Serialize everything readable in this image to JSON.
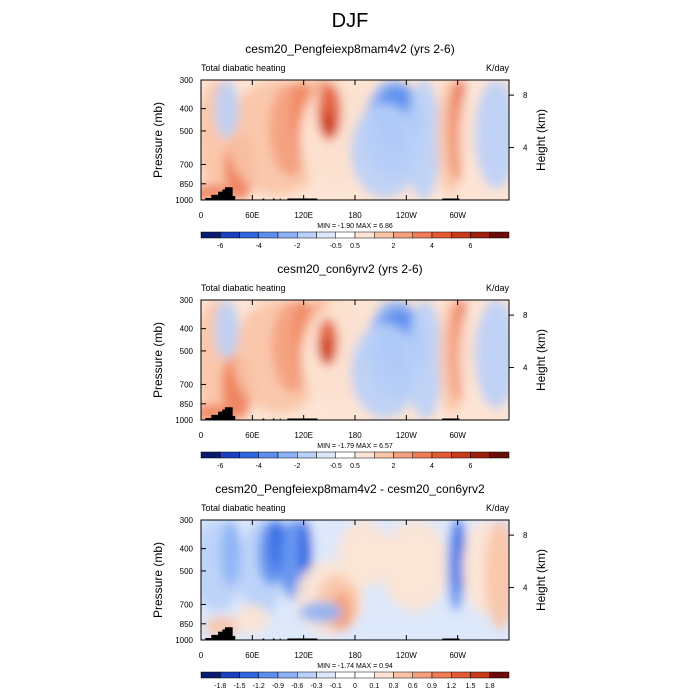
{
  "title": "DJF",
  "chart_data": [
    {
      "type": "heatmap",
      "title": "cesm20_Pengfeiexp8mam4v2 (yrs 2-6)",
      "left_label": "Total diabatic heating",
      "right_label": "K/day",
      "ylabel": "Pressure (mb)",
      "ylabel_right": "Height (km)",
      "yticks": [
        "300",
        "400",
        "500",
        "700",
        "850",
        "1000"
      ],
      "yticks_right": [
        "8",
        "4"
      ],
      "xticks": [
        "0",
        "60E",
        "120E",
        "180",
        "120W",
        "60W"
      ],
      "stats": "MIN = -1.90  MAX =  6.86",
      "colorbar_labels": [
        "-6",
        "-4",
        "-2",
        "-0.5",
        "0.5",
        "2",
        "4",
        "6"
      ],
      "colorbar_colors": [
        "#0a1a6e",
        "#1b3fbf",
        "#2f66e0",
        "#5c8ef0",
        "#8cb1f5",
        "#b9d0f8",
        "#dde8fb",
        "#ffffff",
        "#fde4d4",
        "#f9c4a7",
        "#f4a07c",
        "#ee7c56",
        "#e25a33",
        "#c73a1a",
        "#9c1f0e",
        "#6b0c06"
      ]
    },
    {
      "type": "heatmap",
      "title": "cesm20_con6yrv2 (yrs 2-6)",
      "left_label": "Total diabatic heating",
      "right_label": "K/day",
      "ylabel": "Pressure (mb)",
      "ylabel_right": "Height (km)",
      "yticks": [
        "300",
        "400",
        "500",
        "700",
        "850",
        "1000"
      ],
      "yticks_right": [
        "8",
        "4"
      ],
      "xticks": [
        "0",
        "60E",
        "120E",
        "180",
        "120W",
        "60W"
      ],
      "stats": "MIN = -1.79  MAX =  6.57",
      "colorbar_labels": [
        "-6",
        "-4",
        "-2",
        "-0.5",
        "0.5",
        "2",
        "4",
        "6"
      ],
      "colorbar_colors": [
        "#0a1a6e",
        "#1b3fbf",
        "#2f66e0",
        "#5c8ef0",
        "#8cb1f5",
        "#b9d0f8",
        "#dde8fb",
        "#ffffff",
        "#fde4d4",
        "#f9c4a7",
        "#f4a07c",
        "#ee7c56",
        "#e25a33",
        "#c73a1a",
        "#9c1f0e",
        "#6b0c06"
      ]
    },
    {
      "type": "heatmap",
      "title": "cesm20_Pengfeiexp8mam4v2 - cesm20_con6yrv2",
      "left_label": "Total diabatic heating",
      "right_label": "K/day",
      "ylabel": "Pressure (mb)",
      "ylabel_right": "Height (km)",
      "yticks": [
        "300",
        "400",
        "500",
        "700",
        "850",
        "1000"
      ],
      "yticks_right": [
        "8",
        "4"
      ],
      "xticks": [
        "0",
        "60E",
        "120E",
        "180",
        "120W",
        "60W"
      ],
      "stats": "MIN = -1.74  MAX =  0.94",
      "colorbar_labels": [
        "-1.8",
        "-1.5",
        "-1.2",
        "-0.9",
        "-0.6",
        "-0.3",
        "-0.1",
        "0",
        "0.1",
        "0.3",
        "0.6",
        "0.9",
        "1.2",
        "1.5",
        "1.8"
      ],
      "colorbar_colors": [
        "#0a1a6e",
        "#1b3fbf",
        "#2f66e0",
        "#5c8ef0",
        "#8cb1f5",
        "#b9d0f8",
        "#dde8fb",
        "#ffffff",
        "#ffffff",
        "#fde4d4",
        "#f9c4a7",
        "#f4a07c",
        "#ee7c56",
        "#e25a33",
        "#c73a1a",
        "#6b0c06"
      ]
    }
  ]
}
